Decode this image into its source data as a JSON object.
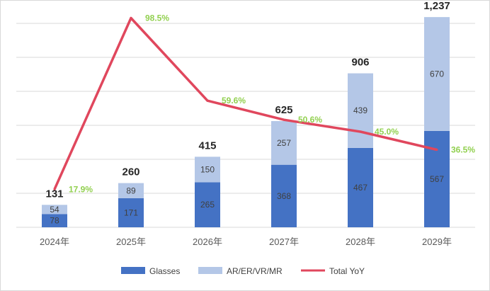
{
  "chart_data": {
    "type": "bar+line",
    "categories": [
      "2024年",
      "2025年",
      "2026年",
      "2027年",
      "2028年",
      "2029年"
    ],
    "series": [
      {
        "name": "Glasses",
        "type": "stacked-bar",
        "values": [
          78,
          171,
          265,
          368,
          467,
          567
        ]
      },
      {
        "name": "AR/ER/VR/MR",
        "type": "stacked-bar",
        "values": [
          54,
          89,
          150,
          257,
          439,
          670
        ]
      },
      {
        "name": "Total YoY",
        "type": "line",
        "values": [
          17.9,
          98.5,
          59.6,
          50.6,
          45.0,
          36.5
        ]
      }
    ],
    "totals": [
      131,
      260,
      415,
      625,
      906,
      1237
    ],
    "total_labels": [
      "131",
      "260",
      "415",
      "625",
      "906",
      "1,237"
    ],
    "bar_labels": {
      "glasses": [
        "78",
        "171",
        "265",
        "368",
        "467",
        "567"
      ],
      "ar": [
        "54",
        "89",
        "150",
        "257",
        "439",
        "670"
      ]
    },
    "yoy_labels": [
      "17.9%",
      "98.5%",
      "59.6%",
      "50.6%",
      "45.0%",
      "36.5%"
    ],
    "ylim": [
      0,
      1250
    ],
    "y2lim": [
      0,
      100
    ],
    "grid": true,
    "legend_position": "bottom",
    "colors": {
      "glasses": "#4472c4",
      "ar": "#b4c7e7",
      "yoy_line": "#e0475d",
      "yoy_label": "#92d050",
      "grid": "#d9d9d9"
    }
  }
}
